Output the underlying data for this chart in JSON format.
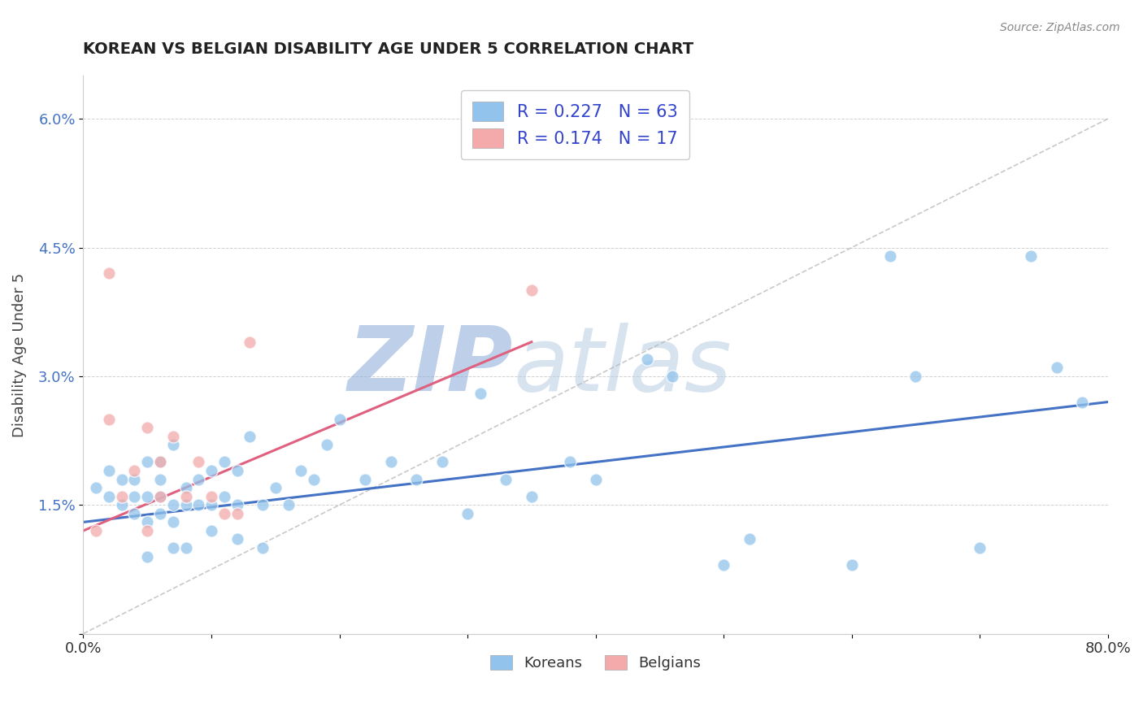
{
  "title": "KOREAN VS BELGIAN DISABILITY AGE UNDER 5 CORRELATION CHART",
  "source_text": "Source: ZipAtlas.com",
  "ylabel": "Disability Age Under 5",
  "xlim": [
    0.0,
    0.8
  ],
  "ylim": [
    0.0,
    0.065
  ],
  "xticks": [
    0.0,
    0.1,
    0.2,
    0.3,
    0.4,
    0.5,
    0.6,
    0.7,
    0.8
  ],
  "xticklabels": [
    "0.0%",
    "",
    "",
    "",
    "",
    "",
    "",
    "",
    "80.0%"
  ],
  "yticks": [
    0.0,
    0.015,
    0.03,
    0.045,
    0.06
  ],
  "yticklabels": [
    "",
    "1.5%",
    "3.0%",
    "4.5%",
    "6.0%"
  ],
  "korean_R": 0.227,
  "korean_N": 63,
  "belgian_R": 0.174,
  "belgian_N": 17,
  "korean_color": "#91C3EC",
  "belgian_color": "#F4AAAA",
  "korean_line_color": "#4472C4",
  "belgian_line_color": "#E06080",
  "ref_line_color": "#BBBBBB",
  "watermark": "ZIPatlas",
  "watermark_color": "#C8D8EE",
  "legend_label_korean": "Koreans",
  "legend_label_belgian": "Belgians",
  "korean_x": [
    0.01,
    0.02,
    0.02,
    0.03,
    0.03,
    0.04,
    0.04,
    0.04,
    0.05,
    0.05,
    0.05,
    0.05,
    0.06,
    0.06,
    0.06,
    0.06,
    0.07,
    0.07,
    0.07,
    0.07,
    0.08,
    0.08,
    0.08,
    0.09,
    0.09,
    0.1,
    0.1,
    0.1,
    0.11,
    0.11,
    0.12,
    0.12,
    0.12,
    0.13,
    0.14,
    0.14,
    0.15,
    0.16,
    0.17,
    0.18,
    0.19,
    0.2,
    0.22,
    0.24,
    0.26,
    0.28,
    0.3,
    0.31,
    0.33,
    0.35,
    0.38,
    0.4,
    0.44,
    0.46,
    0.5,
    0.52,
    0.6,
    0.63,
    0.65,
    0.7,
    0.74,
    0.76,
    0.78
  ],
  "korean_y": [
    0.017,
    0.016,
    0.019,
    0.015,
    0.018,
    0.014,
    0.016,
    0.018,
    0.009,
    0.013,
    0.016,
    0.02,
    0.014,
    0.016,
    0.018,
    0.02,
    0.01,
    0.013,
    0.015,
    0.022,
    0.01,
    0.015,
    0.017,
    0.015,
    0.018,
    0.012,
    0.015,
    0.019,
    0.016,
    0.02,
    0.011,
    0.015,
    0.019,
    0.023,
    0.01,
    0.015,
    0.017,
    0.015,
    0.019,
    0.018,
    0.022,
    0.025,
    0.018,
    0.02,
    0.018,
    0.02,
    0.014,
    0.028,
    0.018,
    0.016,
    0.02,
    0.018,
    0.032,
    0.03,
    0.008,
    0.011,
    0.008,
    0.044,
    0.03,
    0.01,
    0.044,
    0.031,
    0.027
  ],
  "belgian_x": [
    0.01,
    0.02,
    0.02,
    0.03,
    0.04,
    0.05,
    0.05,
    0.06,
    0.06,
    0.07,
    0.08,
    0.09,
    0.1,
    0.11,
    0.12,
    0.13,
    0.35
  ],
  "belgian_y": [
    0.012,
    0.025,
    0.042,
    0.016,
    0.019,
    0.024,
    0.012,
    0.016,
    0.02,
    0.023,
    0.016,
    0.02,
    0.016,
    0.014,
    0.014,
    0.034,
    0.04
  ],
  "korean_trend_x0": 0.0,
  "korean_trend_y0": 0.013,
  "korean_trend_x1": 0.8,
  "korean_trend_y1": 0.027,
  "belgian_trend_x0": 0.0,
  "belgian_trend_y0": 0.012,
  "belgian_trend_x1": 0.35,
  "belgian_trend_y1": 0.034,
  "ref_line_x0": 0.0,
  "ref_line_y0": 0.0,
  "ref_line_x1": 0.8,
  "ref_line_y1": 0.06
}
